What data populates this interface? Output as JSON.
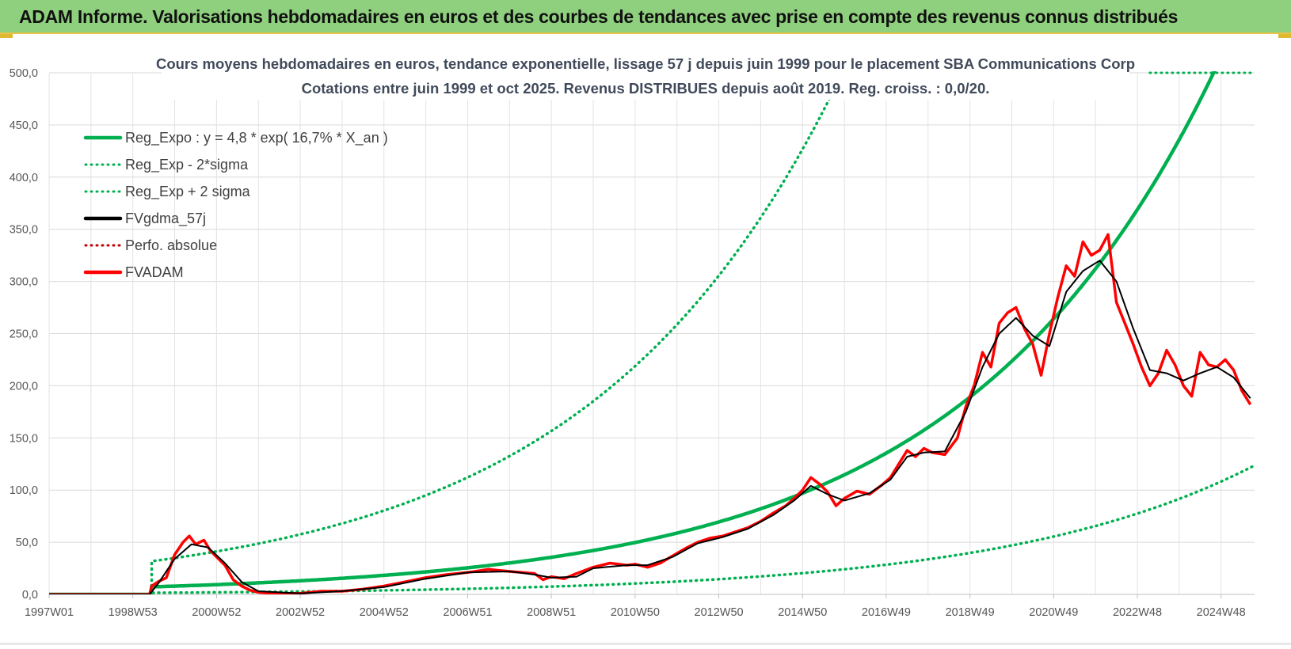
{
  "header": {
    "title": "ADAM Informe. Valorisations hebdomadaires en euros et des courbes de tendances avec prise en compte des revenus connus distribués"
  },
  "chart_data": {
    "type": "line",
    "title_line1": "Cours moyens hebdomadaires en euros, tendance exponentielle, lissage 57 j depuis juin 1999 pour le placement SBA Communications Corp",
    "title_line2": "Cotations entre juin 1999 et oct 2025. Revenus DISTRIBUES depuis août 2019. Reg. croiss. : 0,0/20.",
    "xlabel": "",
    "ylabel": "",
    "ylim": [
      0,
      500
    ],
    "xlim": [
      1997.0,
      2025.8
    ],
    "y_ticks": [
      "0,0",
      "50,0",
      "100,0",
      "150,0",
      "200,0",
      "250,0",
      "300,0",
      "350,0",
      "400,0",
      "450,0",
      "500,0"
    ],
    "y_tick_values": [
      0,
      50,
      100,
      150,
      200,
      250,
      300,
      350,
      400,
      450,
      500
    ],
    "x_ticks": [
      "1997W01",
      "1998W53",
      "2000W52",
      "2002W52",
      "2004W52",
      "2006W51",
      "2008W51",
      "2010W50",
      "2012W50",
      "2014W50",
      "2016W49",
      "2018W49",
      "2020W49",
      "2022W48",
      "2024W48"
    ],
    "x_tick_values": [
      1997.0,
      1999.0,
      2001.0,
      2003.0,
      2005.0,
      2007.0,
      2009.0,
      2011.0,
      2013.0,
      2015.0,
      2017.0,
      2019.0,
      2021.0,
      2023.0,
      2025.0
    ],
    "legend_position": "top-left",
    "legend": [
      {
        "label": "Reg_Expo : y = 4,8 * exp( 16,7% *  X_an )",
        "color": "#00b050",
        "style": "solid"
      },
      {
        "label": "Reg_Exp - 2*sigma",
        "color": "#00b050",
        "style": "dotted"
      },
      {
        "label": "Reg_Exp + 2 sigma",
        "color": "#00b050",
        "style": "dotted"
      },
      {
        "label": "FVgdma_57j",
        "color": "#000000",
        "style": "solid"
      },
      {
        "label": "Perfo. absolue",
        "color": "#c00000",
        "style": "dotted"
      },
      {
        "label": "FVADAM",
        "color": "#ff0000",
        "style": "solid"
      }
    ],
    "series": [
      {
        "name": "FVADAM",
        "color": "#ff0000",
        "x": [
          1997.0,
          1999.4,
          1999.45,
          1999.6,
          1999.8,
          2000.0,
          2000.2,
          2000.35,
          2000.5,
          2000.7,
          2000.85,
          2001.0,
          2001.2,
          2001.4,
          2001.6,
          2001.8,
          2002.0,
          2002.3,
          2002.6,
          2003.0,
          2003.5,
          2004.0,
          2004.5,
          2005.0,
          2005.5,
          2006.0,
          2006.5,
          2007.0,
          2007.5,
          2008.0,
          2008.3,
          2008.6,
          2008.8,
          2009.0,
          2009.3,
          2009.6,
          2010.0,
          2010.4,
          2010.8,
          2011.0,
          2011.3,
          2011.6,
          2011.9,
          2012.2,
          2012.5,
          2012.8,
          2013.1,
          2013.4,
          2013.7,
          2014.0,
          2014.3,
          2014.6,
          2014.8,
          2015.0,
          2015.2,
          2015.4,
          2015.6,
          2015.8,
          2016.0,
          2016.3,
          2016.6,
          2016.9,
          2017.1,
          2017.3,
          2017.5,
          2017.7,
          2017.9,
          2018.1,
          2018.4,
          2018.7,
          2018.9,
          2019.1,
          2019.3,
          2019.5,
          2019.7,
          2019.9,
          2020.1,
          2020.3,
          2020.5,
          2020.7,
          2020.9,
          2021.1,
          2021.3,
          2021.5,
          2021.7,
          2021.9,
          2022.1,
          2022.3,
          2022.5,
          2022.7,
          2022.9,
          2023.1,
          2023.3,
          2023.5,
          2023.7,
          2023.9,
          2024.1,
          2024.3,
          2024.5,
          2024.7,
          2024.9,
          2025.1,
          2025.3,
          2025.5,
          2025.7
        ],
        "y": [
          0,
          0,
          8,
          12,
          16,
          38,
          50,
          56,
          48,
          52,
          42,
          36,
          28,
          14,
          8,
          4,
          2,
          1,
          1,
          1,
          3,
          3,
          5,
          8,
          12,
          16,
          19,
          21,
          24,
          22,
          21,
          20,
          14,
          17,
          15,
          20,
          26,
          30,
          28,
          29,
          26,
          30,
          37,
          44,
          50,
          54,
          56,
          60,
          64,
          70,
          78,
          85,
          92,
          100,
          112,
          106,
          98,
          85,
          92,
          99,
          96,
          105,
          112,
          125,
          138,
          132,
          140,
          136,
          134,
          150,
          180,
          200,
          232,
          218,
          260,
          270,
          275,
          255,
          240,
          210,
          250,
          285,
          315,
          305,
          338,
          325,
          330,
          345,
          280,
          260,
          240,
          218,
          200,
          212,
          234,
          220,
          200,
          190,
          232,
          220,
          218,
          225,
          215,
          195,
          182
        ]
      },
      {
        "name": "FVgdma_57j",
        "color": "#000000",
        "x": [
          1997.0,
          1999.4,
          1999.6,
          2000.0,
          2000.4,
          2000.8,
          2001.2,
          2001.6,
          2002.0,
          2003.0,
          2004.0,
          2005.0,
          2006.0,
          2007.0,
          2008.0,
          2008.6,
          2009.0,
          2009.6,
          2010.0,
          2010.8,
          2011.3,
          2011.9,
          2012.5,
          2013.1,
          2013.7,
          2014.3,
          2014.8,
          2015.2,
          2015.6,
          2016.0,
          2016.6,
          2017.1,
          2017.5,
          2017.9,
          2018.4,
          2018.9,
          2019.3,
          2019.7,
          2020.1,
          2020.5,
          2020.9,
          2021.3,
          2021.7,
          2022.1,
          2022.5,
          2022.9,
          2023.3,
          2023.7,
          2024.1,
          2024.5,
          2024.9,
          2025.3,
          2025.7
        ],
        "y": [
          0,
          0,
          10,
          34,
          48,
          45,
          30,
          12,
          3,
          1,
          3,
          7,
          15,
          21,
          22,
          19,
          16,
          17,
          25,
          28,
          28,
          36,
          49,
          55,
          63,
          76,
          90,
          104,
          96,
          90,
          97,
          110,
          132,
          136,
          137,
          175,
          218,
          250,
          265,
          248,
          238,
          290,
          310,
          320,
          300,
          255,
          215,
          212,
          205,
          212,
          218,
          208,
          188
        ]
      },
      {
        "name": "Reg_Expo",
        "color": "#00b050",
        "formula": "y = 4,8 * exp( 16,7% * X_an )",
        "start": 1999.45,
        "end": 2025.8,
        "a": 4.8,
        "b": 0.167
      },
      {
        "name": "Reg_Exp - 2*sigma",
        "color": "#00b050",
        "factor": 0.21
      },
      {
        "name": "Reg_Exp + 2 sigma",
        "color": "#00b050",
        "factor": 4.4
      }
    ]
  }
}
